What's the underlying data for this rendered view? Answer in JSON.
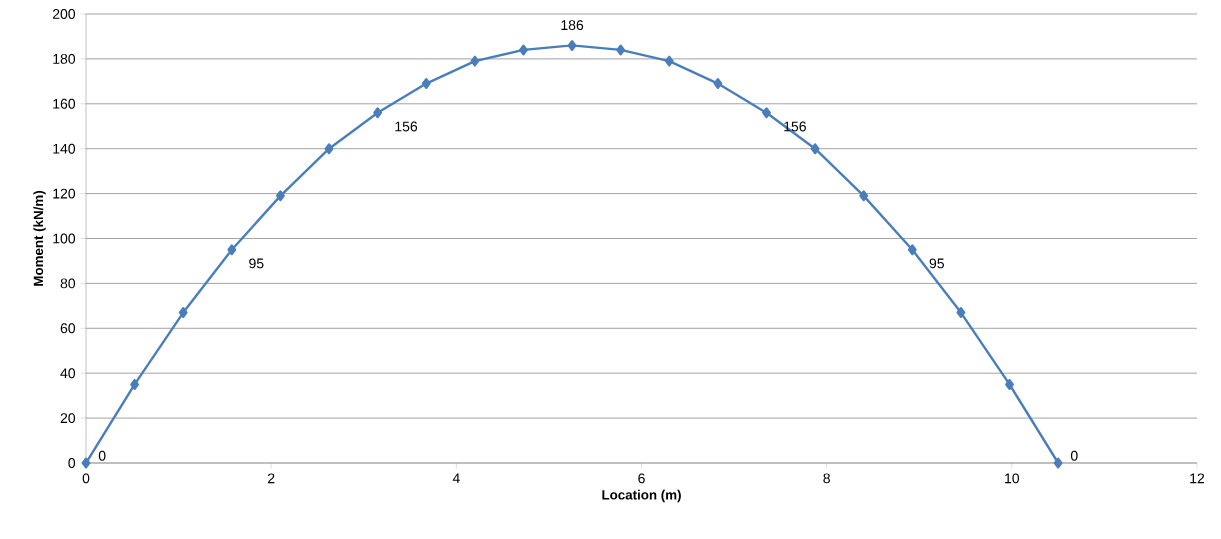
{
  "chart_data": {
    "type": "line",
    "xlabel": "Location (m)",
    "ylabel": "Moment (kN/m)",
    "x": [
      0,
      0.525,
      1.05,
      1.575,
      2.1,
      2.625,
      3.15,
      3.675,
      4.2,
      4.725,
      5.25,
      5.775,
      6.3,
      6.825,
      7.35,
      7.875,
      8.4,
      8.925,
      9.45,
      9.975,
      10.5
    ],
    "values": [
      0,
      35,
      67,
      95,
      119,
      140,
      156,
      169,
      179,
      184,
      186,
      184,
      179,
      169,
      156,
      140,
      119,
      95,
      67,
      35,
      0
    ],
    "value_labels": [
      "0",
      null,
      null,
      "95",
      null,
      null,
      "156",
      null,
      null,
      null,
      "186",
      null,
      null,
      null,
      "156",
      null,
      null,
      "95",
      null,
      null,
      "0"
    ],
    "color": "#4a7ebb",
    "marker": "diamond",
    "line_style": "solid",
    "grid": "y",
    "xlim": [
      0,
      12
    ],
    "ylim": [
      0,
      200
    ],
    "xticks": [
      0,
      2,
      4,
      6,
      8,
      10,
      12
    ],
    "yticks": [
      0,
      20,
      40,
      60,
      80,
      100,
      120,
      140,
      160,
      180,
      200
    ]
  }
}
